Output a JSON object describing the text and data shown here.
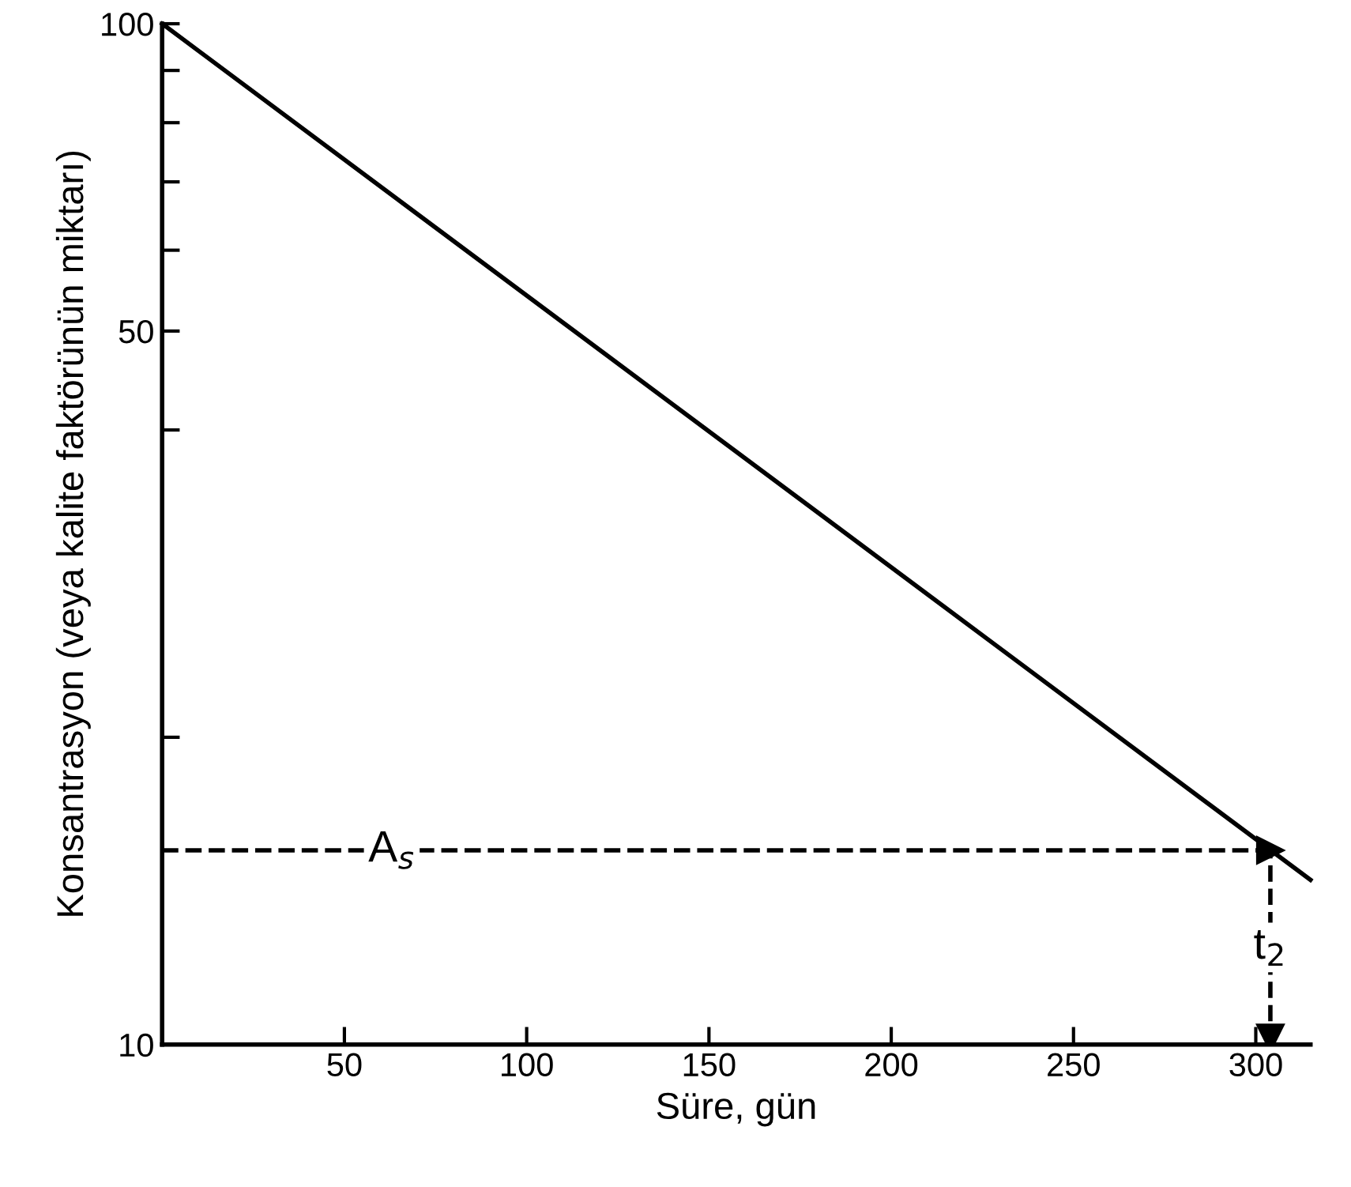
{
  "chart_data": {
    "type": "line",
    "xlabel": "Süre, gün",
    "ylabel": "Konsantrasyon (veya kalite faktörünün miktarı)",
    "x": [
      0,
      315
    ],
    "series": [
      {
        "color": "#000000",
        "values": [
          100,
          14.5
        ]
      }
    ],
    "log": "y",
    "xlim": [
      0,
      315
    ],
    "ylim": [
      10,
      100
    ],
    "xticks": [
      50,
      100,
      150,
      200,
      250,
      300
    ],
    "yticks": [
      10,
      {
        "value": 20,
        "label": null
      },
      {
        "value": 40,
        "label": null
      },
      50,
      {
        "value": 60,
        "label": null
      },
      {
        "value": 70,
        "label": null
      },
      {
        "value": 80,
        "label": null
      },
      {
        "value": 90,
        "label": null
      },
      100
    ],
    "ref_lines": [
      {
        "axis": "y",
        "value": 15.5,
        "label": "A$_{s}$",
        "line_style": "dashed",
        "color": "#000000"
      },
      {
        "axis": "x",
        "value": 304,
        "label": "t$_{2}$",
        "line_style": "dashed",
        "color": "#000000"
      }
    ],
    "grid": false,
    "legend": false,
    "marker": "none",
    "line_style": "solid"
  }
}
